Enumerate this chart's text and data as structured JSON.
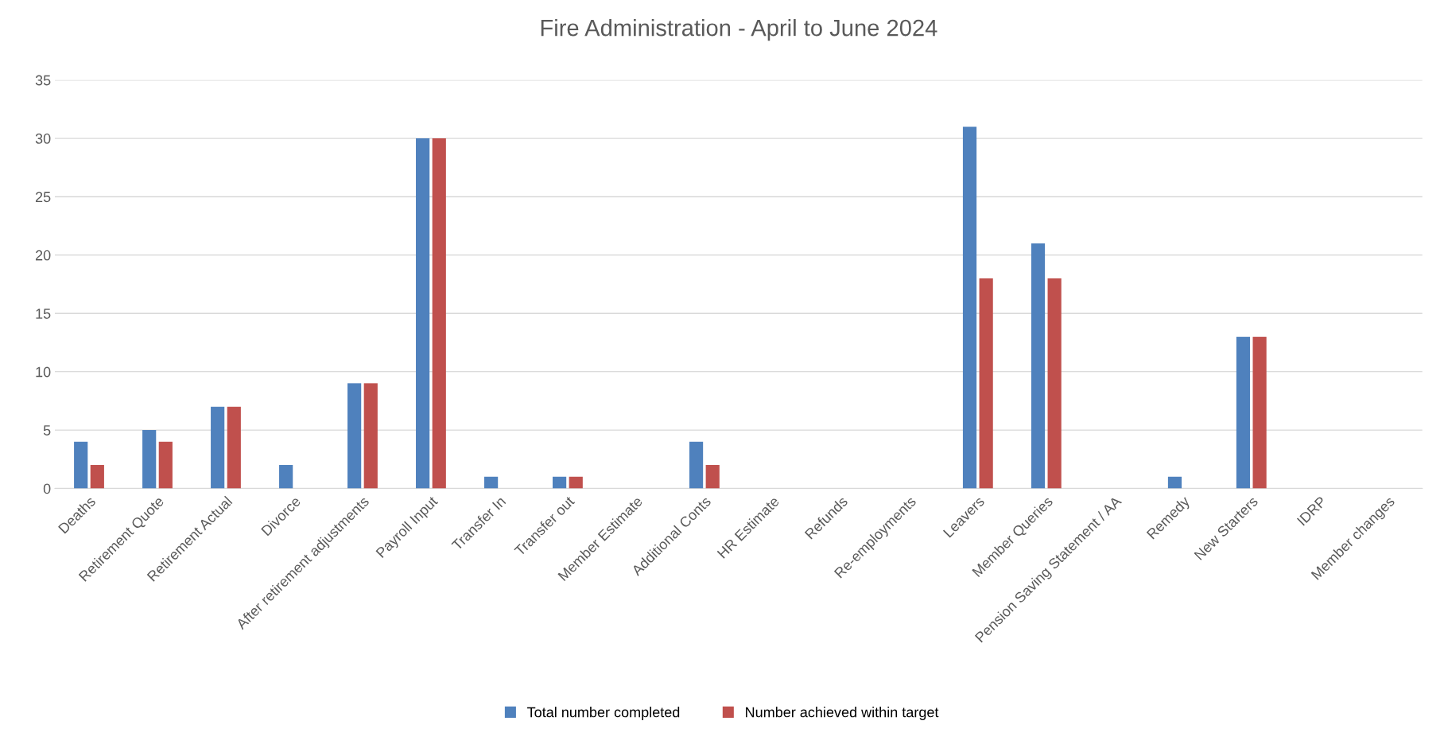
{
  "chart_data": {
    "type": "bar",
    "title": "Fire Administration - April to June 2024",
    "categories": [
      "Deaths",
      "Retirement Quote",
      "Retirement Actual",
      "Divorce",
      "After retirement adjustments",
      "Payroll Input",
      "Transfer In",
      "Transfer out",
      "Member Estimate",
      "Additional Conts",
      "HR Estimate",
      "Refunds",
      "Re-employments",
      "Leavers",
      "Member Queries",
      "Pension Saving Statement / AA",
      "Remedy",
      "New Starters",
      "IDRP",
      "Member changes"
    ],
    "series": [
      {
        "name": "Total number completed",
        "color": "#4f81bd",
        "values": [
          4,
          5,
          7,
          2,
          9,
          30,
          1,
          1,
          0,
          4,
          0,
          0,
          0,
          31,
          21,
          0,
          1,
          13,
          0,
          0
        ]
      },
      {
        "name": "Number achieved within target",
        "color": "#c0504d",
        "values": [
          2,
          4,
          7,
          0,
          9,
          30,
          0,
          1,
          0,
          2,
          0,
          0,
          0,
          18,
          18,
          0,
          0,
          13,
          0,
          0
        ]
      }
    ],
    "ylim": [
      0,
      35
    ],
    "yticks": [
      0,
      5,
      10,
      15,
      20,
      25,
      30,
      35
    ],
    "grid": "y",
    "legend": "bottom"
  }
}
